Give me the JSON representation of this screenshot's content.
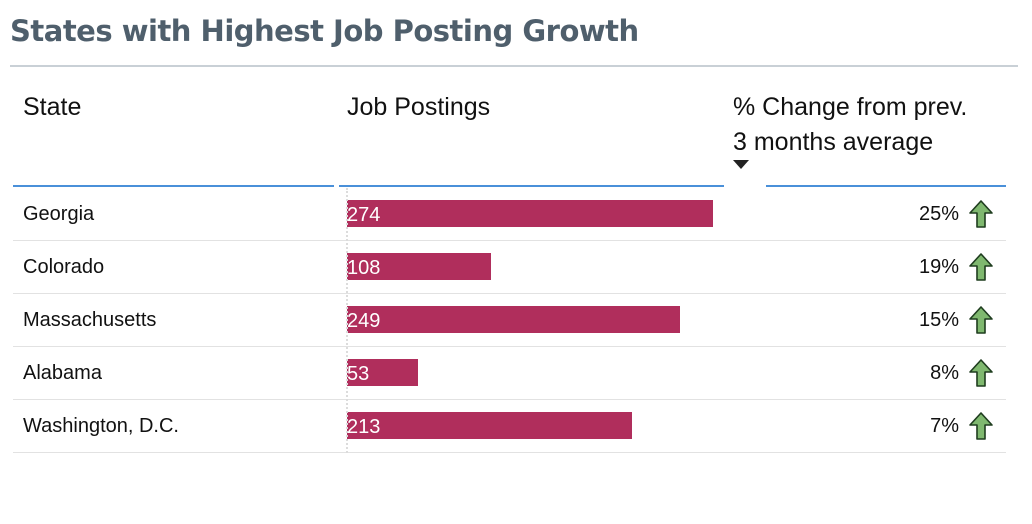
{
  "title": "States with Highest Job Posting Growth",
  "columns": {
    "state": "State",
    "postings": "Job Postings",
    "change_line1": "% Change from prev.",
    "change_line2": "3 months average"
  },
  "icons": {
    "sort": "sort-descending-icon",
    "trend": "arrow-up-icon"
  },
  "colors": {
    "bar": "#b02e5c",
    "arrow_fill": "#7fb86f",
    "title": "#4f5f6c",
    "header_rule": "#4a90d9"
  },
  "chart_data": {
    "type": "bar",
    "orientation": "horizontal",
    "title": "States with Highest Job Posting Growth",
    "categories": [
      "Georgia",
      "Colorado",
      "Massachusetts",
      "Alabama",
      "Washington, D.C."
    ],
    "series": [
      {
        "name": "Job Postings",
        "values": [
          274,
          108,
          249,
          53,
          213
        ]
      },
      {
        "name": "% Change from prev. 3 months average",
        "values": [
          25,
          19,
          15,
          8,
          7
        ]
      }
    ],
    "xlim": [
      0,
      274
    ],
    "rows": [
      {
        "state": "Georgia",
        "postings": 274,
        "postings_label": "274",
        "change": "25%"
      },
      {
        "state": "Colorado",
        "postings": 108,
        "postings_label": "108",
        "change": "19%"
      },
      {
        "state": "Massachusetts",
        "postings": 249,
        "postings_label": "249",
        "change": "15%"
      },
      {
        "state": "Alabama",
        "postings": 53,
        "postings_label": "53",
        "change": "8%"
      },
      {
        "state": "Washington, D.C.",
        "postings": 213,
        "postings_label": "213",
        "change": "7%"
      }
    ]
  }
}
